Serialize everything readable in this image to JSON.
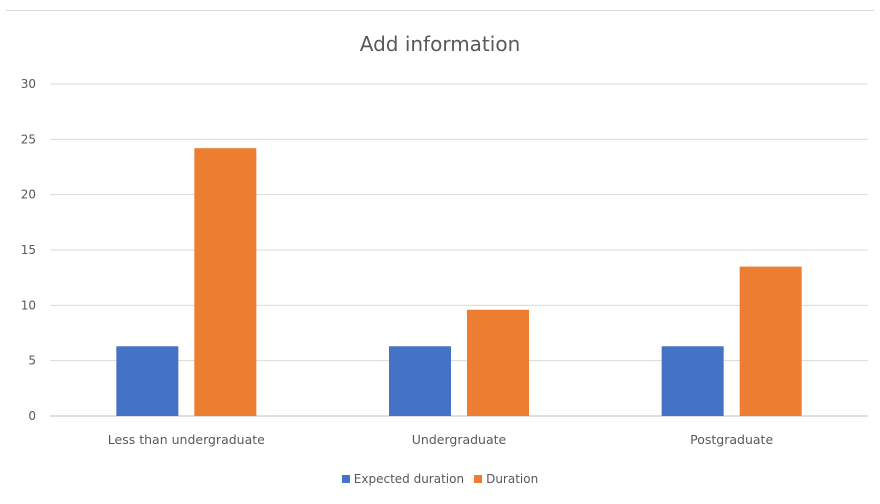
{
  "chart_data": {
    "type": "bar",
    "title": "Add information",
    "xlabel": "",
    "ylabel": "",
    "categories": [
      "Less than undergraduate",
      "Undergraduate",
      "Postgraduate"
    ],
    "series": [
      {
        "name": "Expected duration",
        "color": "#4472C4",
        "values": [
          6.3,
          6.3,
          6.3
        ]
      },
      {
        "name": "Duration",
        "color": "#ED7D31",
        "values": [
          24.2,
          9.6,
          13.5
        ]
      }
    ],
    "yticks": [
      "0",
      "5",
      "10",
      "15",
      "20",
      "25",
      "30"
    ],
    "ylim": [
      0,
      30
    ],
    "grid": true,
    "legend_position": "bottom"
  }
}
